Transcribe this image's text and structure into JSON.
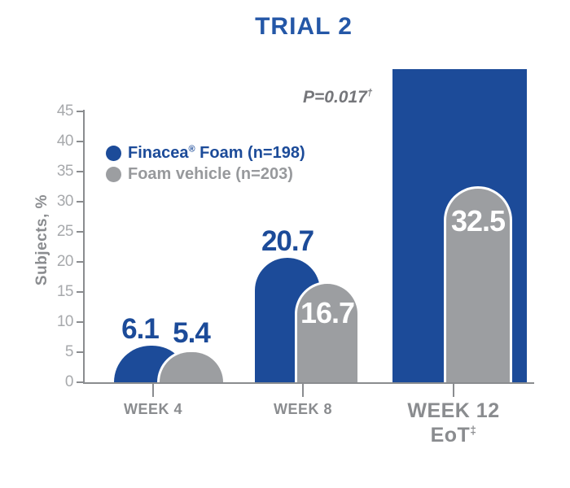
{
  "title": "TRIAL 2",
  "colors": {
    "brand_blue": "#1c4b99",
    "title_blue": "#2457a7",
    "bar_gray": "#9c9ea1",
    "legend_gray": "#97999c",
    "axis_gray": "#8a8c8f",
    "tick_label_gray": "#a7a9ac",
    "pvalue_gray": "#75767a",
    "white": "#ffffff"
  },
  "y_axis": {
    "label": "Subjects, %",
    "ticks": [
      0,
      5,
      10,
      15,
      20,
      25,
      30,
      35,
      40,
      45
    ]
  },
  "x_axis": {
    "labels": [
      {
        "line1": "WEEK 4",
        "line2": "",
        "line2_sup": ""
      },
      {
        "line1": "WEEK 8",
        "line2": "",
        "line2_sup": ""
      },
      {
        "line1": "WEEK 12",
        "line2": "EoT",
        "line2_sup": "‡"
      }
    ]
  },
  "legend": [
    {
      "pre": "Finacea",
      "sup": "®",
      "post": " Foam (n=198)",
      "dot_color": "#1c4b99",
      "text_color": "#1c4b99"
    },
    {
      "pre": "Foam vehicle (n=203)",
      "sup": "",
      "post": "",
      "dot_color": "#9c9ea1",
      "text_color": "#97999c"
    }
  ],
  "annotation": {
    "text": "P=0.017",
    "sup": "†"
  },
  "chart_data": {
    "type": "bar",
    "title": "TRIAL 2",
    "ylabel": "Subjects, %",
    "ylim": [
      0,
      45
    ],
    "yticks": [
      0,
      5,
      10,
      15,
      20,
      25,
      30,
      35,
      40,
      45
    ],
    "grid": false,
    "legend_position": "upper-left",
    "categories": [
      "WEEK 4",
      "WEEK 8",
      "WEEK 12 EoT‡"
    ],
    "series": [
      {
        "name": "Finacea® Foam (n=198)",
        "color": "#1c4b99",
        "values": [
          6.1,
          20.7,
          52
        ],
        "value_labels": [
          "6.1",
          "20.7",
          ""
        ]
      },
      {
        "name": "Foam vehicle (n=203)",
        "color": "#9c9ea1",
        "values": [
          5.4,
          16.7,
          32.5
        ],
        "value_labels": [
          "5.4",
          "16.7",
          "32.5"
        ]
      }
    ],
    "annotations": [
      "P=0.017†"
    ],
    "notes": "Week 12 Finacea bar is drawn off-scale above the axis top with no printed value label; gray bars have white outlines and rounded tops."
  }
}
